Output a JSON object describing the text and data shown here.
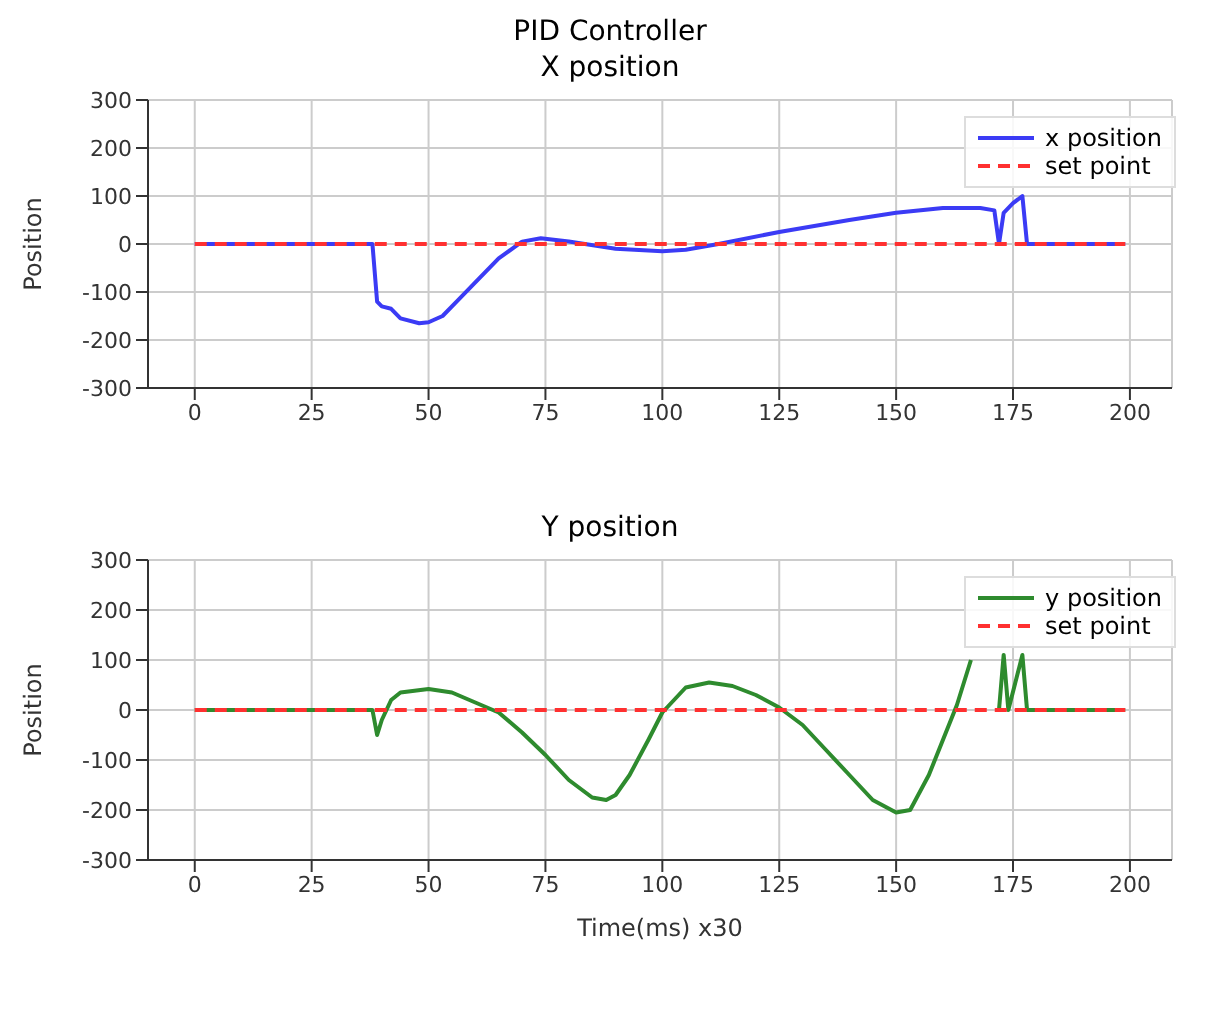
{
  "chart_data": [
    {
      "type": "line",
      "title": "PID Controller",
      "subtitle": "X position",
      "ylabel": "Position",
      "xlim": [
        -10,
        209
      ],
      "ylim": [
        -300,
        300
      ],
      "xticks": [
        0,
        25,
        50,
        75,
        100,
        125,
        150,
        175,
        200
      ],
      "yticks": [
        -300,
        -200,
        -100,
        0,
        100,
        200,
        300
      ],
      "grid": true,
      "legend": "top right",
      "marker": "none",
      "series": [
        {
          "name": "x position",
          "color": "#3b3bf5",
          "line_style": "solid",
          "x": [
            0,
            38,
            39,
            40,
            42,
            44,
            48,
            50,
            53,
            56,
            60,
            65,
            70,
            74,
            80,
            90,
            100,
            105,
            112,
            125,
            140,
            150,
            160,
            168,
            171,
            172,
            173,
            175,
            177,
            178,
            199
          ],
          "values": [
            0,
            0,
            -120,
            -130,
            -135,
            -155,
            -165,
            -163,
            -150,
            -120,
            -80,
            -30,
            5,
            12,
            5,
            -10,
            -15,
            -12,
            0,
            25,
            50,
            65,
            75,
            75,
            70,
            0,
            65,
            85,
            100,
            0,
            0
          ]
        },
        {
          "name": "set point",
          "color": "#ff3030",
          "line_style": "dashed",
          "x": [
            0,
            199
          ],
          "values": [
            0,
            0
          ]
        }
      ]
    },
    {
      "type": "line",
      "title": "Y position",
      "xlabel": "Time(ms) x30",
      "ylabel": "Position",
      "xlim": [
        -10,
        209
      ],
      "ylim": [
        -300,
        300
      ],
      "xticks": [
        0,
        25,
        50,
        75,
        100,
        125,
        150,
        175,
        200
      ],
      "yticks": [
        -300,
        -200,
        -100,
        0,
        100,
        200,
        300
      ],
      "grid": true,
      "legend": "top right",
      "marker": "none",
      "series": [
        {
          "name": "y position",
          "color": "#2e8b2e",
          "line_style": "solid",
          "x": [
            0,
            38,
            39,
            40,
            42,
            44,
            50,
            55,
            60,
            65,
            70,
            75,
            80,
            85,
            88,
            90,
            93,
            97,
            100,
            105,
            110,
            115,
            120,
            125,
            130,
            135,
            140,
            145,
            150,
            153,
            157,
            160,
            163,
            166,
            169,
            171,
            172,
            173,
            174,
            177,
            178,
            199
          ],
          "values": [
            0,
            0,
            -50,
            -20,
            20,
            35,
            42,
            35,
            15,
            -5,
            -45,
            -90,
            -140,
            -175,
            -180,
            -170,
            -130,
            -60,
            -5,
            45,
            55,
            48,
            30,
            5,
            -30,
            -80,
            -130,
            -180,
            -205,
            -200,
            -130,
            -60,
            10,
            100,
            null,
            null,
            0,
            110,
            0,
            110,
            0,
            0
          ]
        },
        {
          "name": "set point",
          "color": "#ff3030",
          "line_style": "dashed",
          "x": [
            0,
            199
          ],
          "values": [
            0,
            0
          ]
        }
      ]
    }
  ]
}
